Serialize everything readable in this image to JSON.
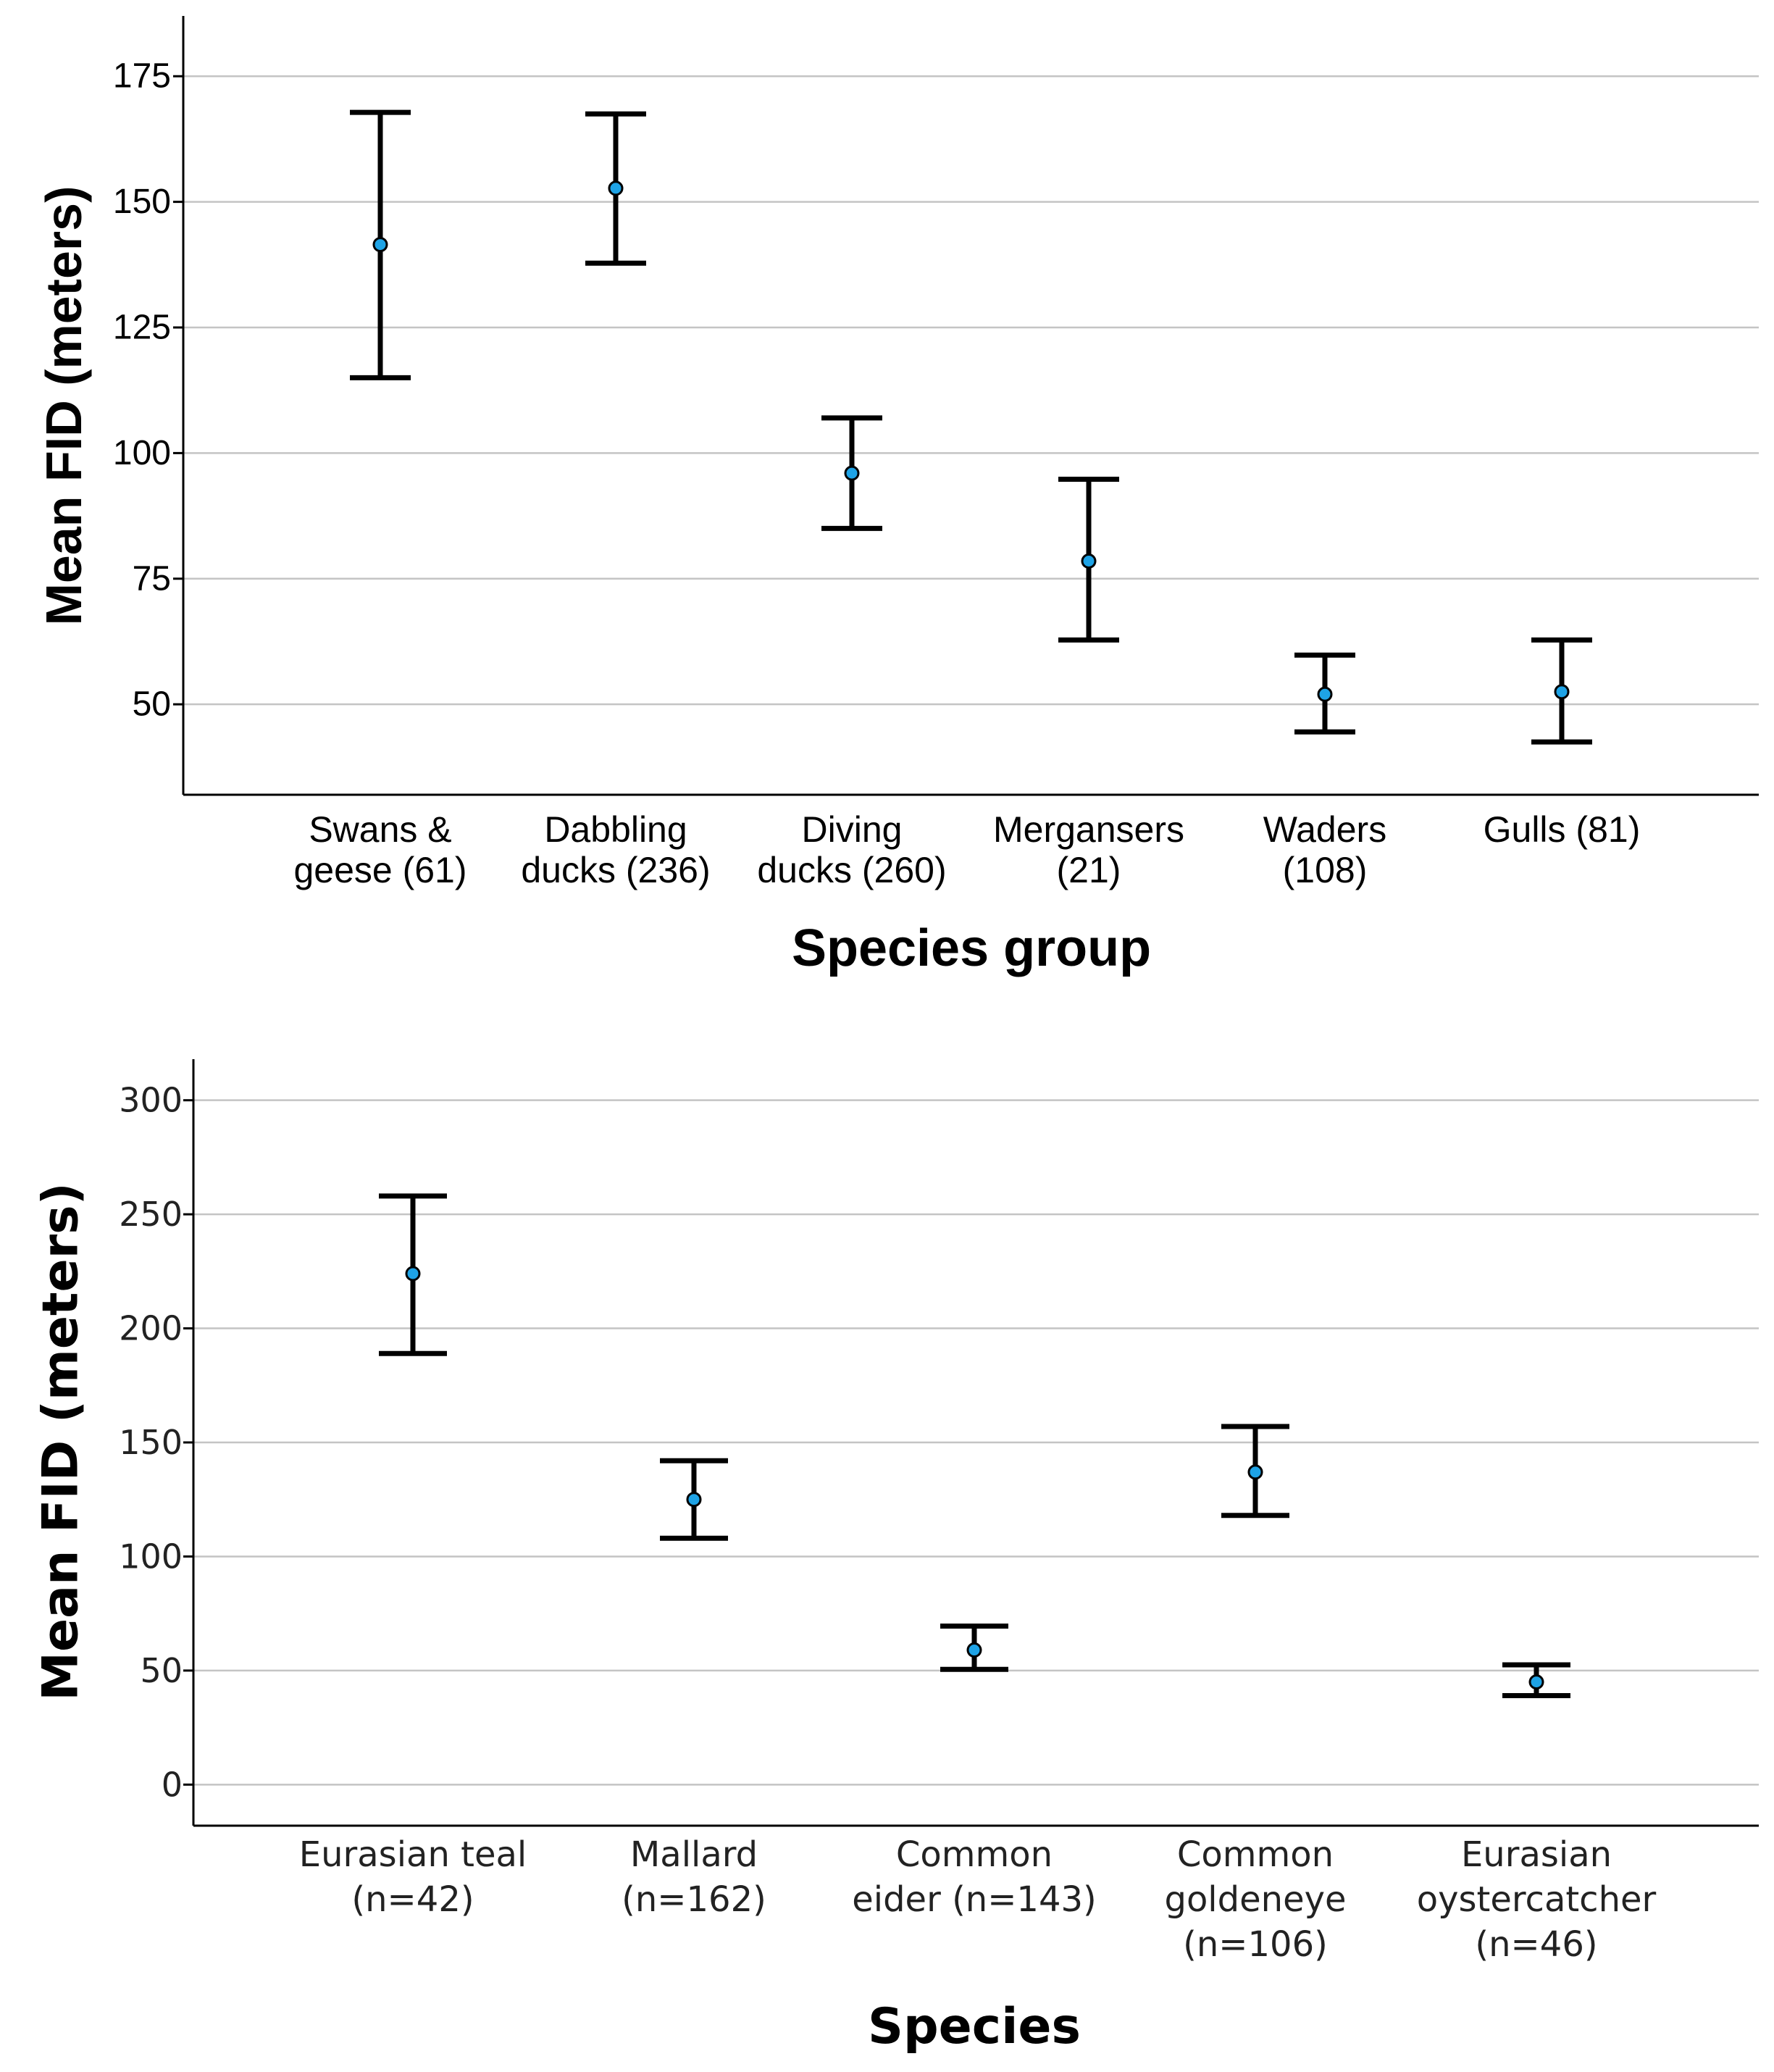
{
  "chart_data": [
    {
      "type": "scatter",
      "subtype": "error-bar",
      "title": "",
      "xlabel": "Species group",
      "ylabel": "Mean FID (meters)",
      "ylim": [
        32,
        187
      ],
      "yticks": [
        50,
        75,
        100,
        125,
        150,
        175
      ],
      "grid": true,
      "categories": [
        [
          "Swans &",
          "geese (61)"
        ],
        [
          "Dabbling",
          "ducks (236)"
        ],
        [
          "Diving",
          "ducks (260)"
        ],
        [
          "Mergansers",
          "(21)"
        ],
        [
          "Waders",
          "(108)"
        ],
        [
          "Gulls (81)"
        ]
      ],
      "series": [
        {
          "name": "Mean FID",
          "values": [
            141.5,
            152.7,
            96,
            78.5,
            52,
            52.5
          ],
          "lower": [
            115,
            137.8,
            85,
            62.8,
            44.5,
            42.5
          ],
          "upper": [
            167.8,
            167.5,
            107,
            94.8,
            59.8,
            62.8
          ]
        }
      ]
    },
    {
      "type": "scatter",
      "subtype": "error-bar",
      "title": "",
      "xlabel": "Species",
      "ylabel": "Mean FID (meters)",
      "ylim": [
        -18,
        318
      ],
      "yticks": [
        0,
        50,
        100,
        150,
        200,
        250,
        300
      ],
      "grid": true,
      "categories": [
        [
          "Eurasian teal",
          "(n=42)"
        ],
        [
          "Mallard",
          "(n=162)"
        ],
        [
          "Common",
          "eider (n=143)"
        ],
        [
          "Common",
          "goldeneye",
          "(n=106)"
        ],
        [
          "Eurasian",
          "oystercatcher",
          "(n=46)"
        ]
      ],
      "series": [
        {
          "name": "Mean FID",
          "values": [
            224,
            125,
            59,
            137,
            45
          ],
          "lower": [
            189,
            108,
            50.5,
            118,
            39
          ],
          "upper": [
            258,
            142,
            69.5,
            157,
            52.5
          ]
        }
      ]
    }
  ]
}
